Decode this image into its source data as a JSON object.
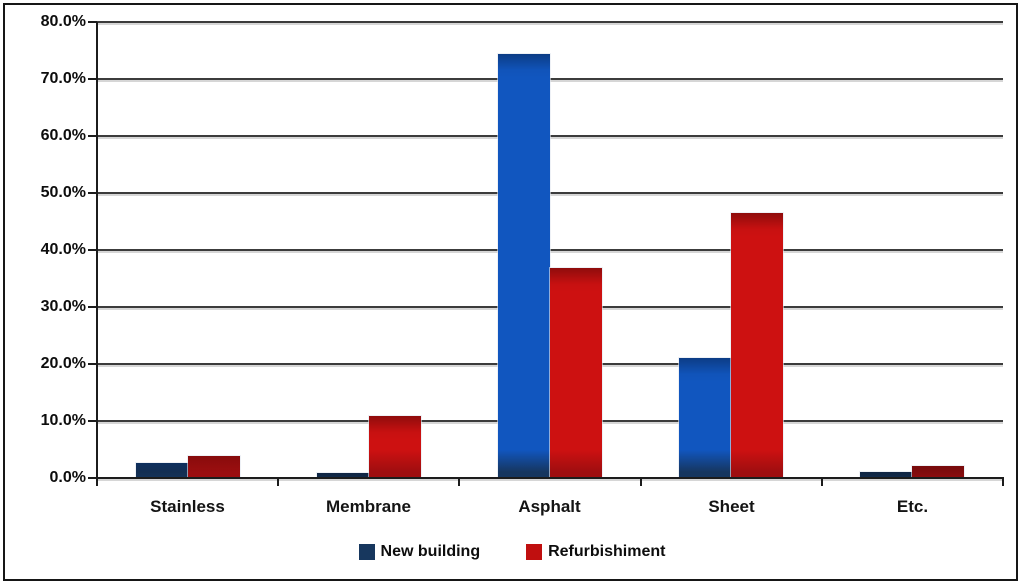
{
  "chart_data": {
    "type": "bar",
    "title": "",
    "xlabel": "",
    "ylabel": "",
    "categories": [
      "Stainless",
      "Membrane",
      "Asphalt",
      "Sheet",
      "Etc."
    ],
    "series": [
      {
        "name": "New building",
        "fill_color": "#1156bf",
        "shade_color": "#16365f",
        "legend_color": "#17375e",
        "values": [
          2.6,
          0.8,
          74.4,
          21.1,
          1.0
        ]
      },
      {
        "name": "Refurbishiment",
        "fill_color": "#cd1111",
        "shade_color": "#9e0e10",
        "legend_color": "#c00f0f",
        "values": [
          3.9,
          10.9,
          36.8,
          46.5,
          2.1
        ]
      }
    ],
    "ylim": [
      0,
      80
    ],
    "ytick_step": 10,
    "ytick_labels": [
      "0.0%",
      "10.0%",
      "20.0%",
      "30.0%",
      "40.0%",
      "50.0%",
      "60.0%",
      "70.0%",
      "80.0%"
    ],
    "grid": true,
    "legend_position": "bottom",
    "background_color": "#ffffff",
    "border_color": "#161616",
    "gridline_color": "#3c3c3c",
    "text_color": "#0d0d0d"
  }
}
